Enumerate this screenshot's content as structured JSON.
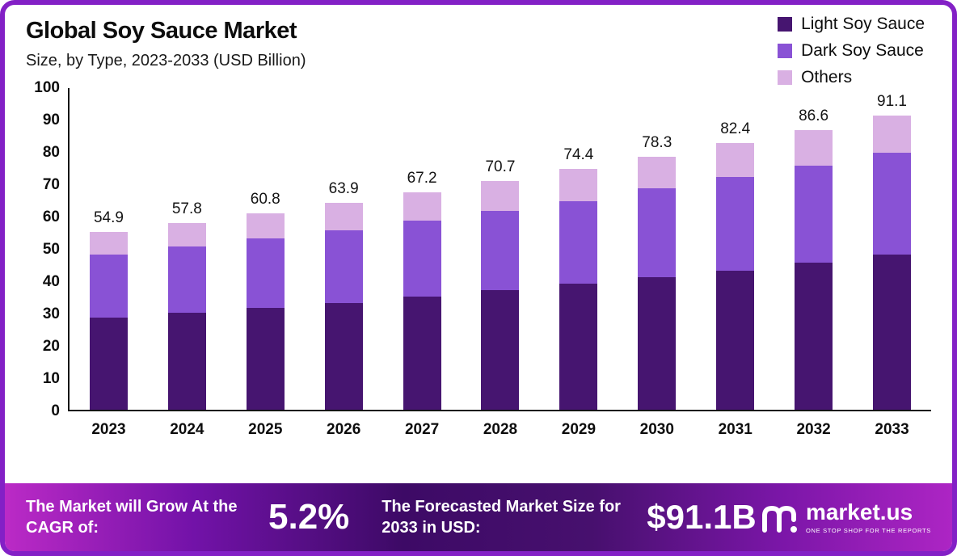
{
  "header": {
    "title": "Global Soy Sauce Market",
    "subtitle": "Size, by Type, 2023-2033 (USD Billion)"
  },
  "chart_data": {
    "type": "bar",
    "stacked": true,
    "title": "Global Soy Sauce Market",
    "subtitle": "Size, by Type, 2023-2033 (USD Billion)",
    "unit": "USD Billion",
    "categories": [
      "2023",
      "2024",
      "2025",
      "2026",
      "2027",
      "2028",
      "2029",
      "2030",
      "2031",
      "2032",
      "2033"
    ],
    "series": [
      {
        "name": "Light Soy Sauce",
        "color": "#461570",
        "values": [
          28.5,
          30.0,
          31.5,
          33.0,
          35.0,
          37.0,
          39.0,
          41.0,
          43.0,
          45.5,
          48.0
        ]
      },
      {
        "name": "Dark Soy Sauce",
        "color": "#8952d5",
        "values": [
          19.5,
          20.5,
          21.5,
          22.5,
          23.5,
          24.5,
          25.5,
          27.5,
          29.0,
          30.0,
          31.5
        ]
      },
      {
        "name": "Others",
        "color": "#d9b0e3",
        "values": [
          6.9,
          7.3,
          7.8,
          8.4,
          8.7,
          9.2,
          9.9,
          9.8,
          10.4,
          11.1,
          11.6
        ]
      }
    ],
    "totals": [
      "54.9",
      "57.8",
      "60.8",
      "63.9",
      "67.2",
      "70.7",
      "74.4",
      "78.3",
      "82.4",
      "86.6",
      "91.1"
    ],
    "ylim": [
      0,
      100
    ],
    "ytick_step": 10,
    "legend_position": "top-right",
    "grid": false
  },
  "banner": {
    "cagr_label": "The Market will Grow At the CAGR of:",
    "cagr_value": "5.2%",
    "forecast_label": "The Forecasted Market Size for 2033 in USD:",
    "forecast_value": "$91.1B",
    "logo_text": "market.us",
    "logo_tagline": "ONE STOP SHOP FOR THE REPORTS"
  },
  "colors": {
    "frame_border": "#8320c6",
    "axis": "#141414",
    "banner_gradient": [
      "#bb2ac6",
      "#3d0a66",
      "#ad25c4"
    ]
  }
}
